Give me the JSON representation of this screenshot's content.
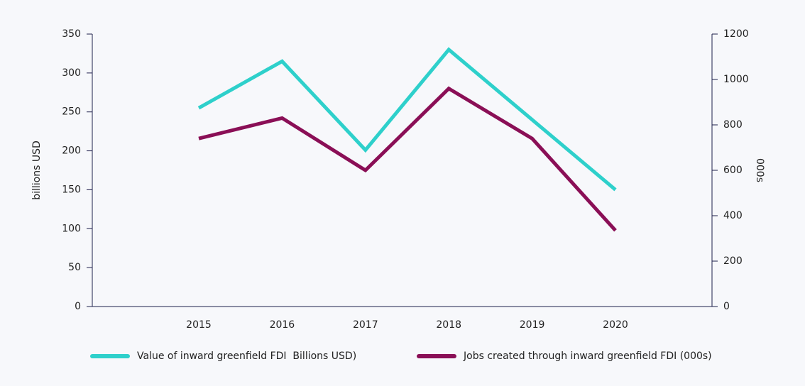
{
  "chart_data": {
    "type": "line",
    "categories": [
      "2015",
      "2016",
      "2017",
      "2018",
      "2019",
      "2020"
    ],
    "ylabel": "billions USD",
    "y2label": "000s",
    "ylim": [
      0,
      350
    ],
    "yticks": [
      0,
      50,
      100,
      150,
      200,
      250,
      300,
      350
    ],
    "y2lim": [
      0,
      1200
    ],
    "y2ticks": [
      0,
      200,
      400,
      600,
      800,
      1000,
      1200
    ],
    "legend": "bottom",
    "series": [
      {
        "name": "Value of inward greenfield FDI  Billions USD)",
        "color": "#2ed0cb",
        "values": [
          255,
          315,
          201,
          330,
          240,
          150
        ]
      },
      {
        "name": "Jobs created through inward greenfield FDI (000s)",
        "color": "#8a0f56",
        "axis": "y2",
        "values": [
          740,
          830,
          600,
          960,
          740,
          335
        ]
      }
    ]
  }
}
